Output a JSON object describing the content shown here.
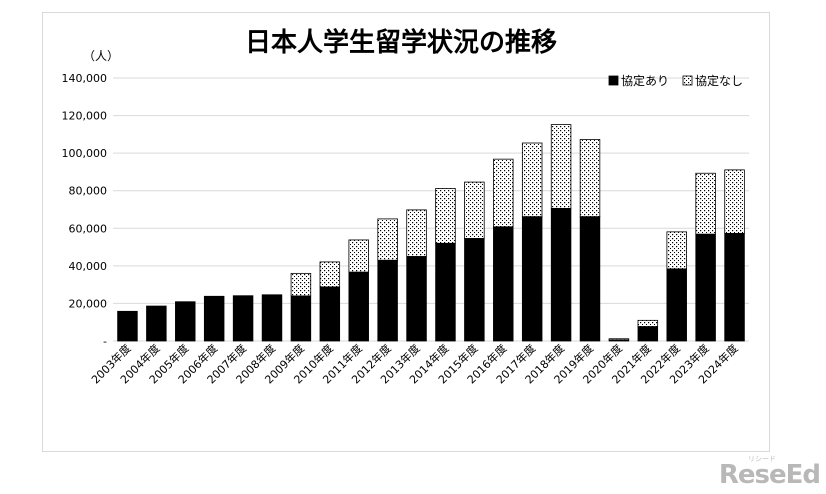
{
  "chart_data": {
    "type": "bar",
    "stacked": true,
    "title": "日本人学生留学状況の推移",
    "unit_label": "（人）",
    "categories": [
      "2003年度",
      "2004年度",
      "2005年度",
      "2006年度",
      "2007年度",
      "2008年度",
      "2009年度",
      "2010年度",
      "2011年度",
      "2012年度",
      "2013年度",
      "2014年度",
      "2015年度",
      "2016年度",
      "2017年度",
      "2018年度",
      "2019年度",
      "2020年度",
      "2021年度",
      "2022年度",
      "2023年度",
      "2024年度"
    ],
    "series": [
      {
        "name": "協定あり",
        "color": "#000000",
        "values": [
          15800,
          18600,
          20900,
          23800,
          24100,
          24600,
          24000,
          28800,
          36700,
          43000,
          45000,
          52000,
          54600,
          60800,
          66200,
          70600,
          66200,
          600,
          7700,
          38400,
          56900,
          57300
        ]
      },
      {
        "name": "協定なし",
        "pattern": "dots",
        "values": [
          0,
          0,
          0,
          0,
          0,
          0,
          12000,
          13300,
          17100,
          22000,
          24800,
          29200,
          30000,
          36000,
          39200,
          44600,
          41100,
          600,
          3300,
          19700,
          32400,
          33800
        ]
      }
    ],
    "ylim": [
      0,
      140000
    ],
    "yticks": [
      0,
      20000,
      40000,
      60000,
      80000,
      100000,
      120000,
      140000
    ],
    "ytick_labels": [
      "-",
      "20,000",
      "40,000",
      "60,000",
      "80,000",
      "100,000",
      "120,000",
      "140,000"
    ],
    "grid": true,
    "legend_position": "top-right"
  },
  "watermark": "ReseEd",
  "watermark_small": "リシード"
}
